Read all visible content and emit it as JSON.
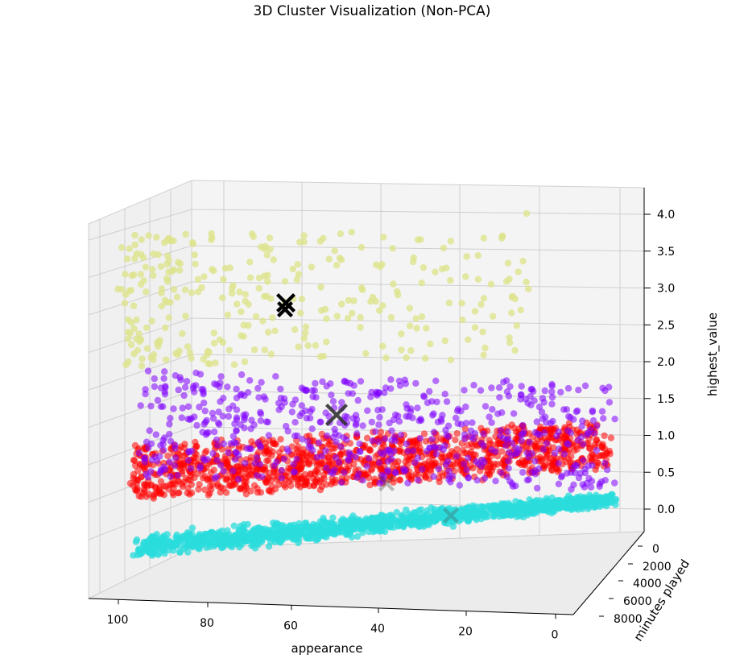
{
  "chart_data": {
    "type": "scatter",
    "title": "3D Cluster Visualization (Non-PCA)",
    "xlabel": "appearance",
    "ylabel": "minutes played",
    "zlabel": "highest_value",
    "x_ticks": [
      "100",
      "80",
      "60",
      "40",
      "20",
      "0"
    ],
    "y_ticks": [
      "0",
      "2000",
      "4000",
      "6000",
      "8000"
    ],
    "z_ticks": [
      "0.0",
      "0.5",
      "1.0",
      "1.5",
      "2.0",
      "2.5",
      "3.0",
      "3.5",
      "4.0"
    ],
    "xlim": [
      0,
      105
    ],
    "ylim": [
      0,
      8500
    ],
    "zlim": [
      -0.3,
      4.25
    ],
    "grid": true,
    "legend": "none",
    "clusters": [
      {
        "color": "#dde38c",
        "approx_z_range": [
          2.0,
          4.0
        ],
        "centroid": {
          "x": 68,
          "y": 1800,
          "z": 2.75
        },
        "centroid_color": "#000000"
      },
      {
        "color": "#8000ff",
        "approx_z_range": [
          1.0,
          2.3
        ],
        "centroid": {
          "x": 52,
          "y": 1800,
          "z": 1.45
        },
        "centroid_color": "#333333"
      },
      {
        "color": "#ff0000",
        "approx_z_range": [
          0.0,
          1.2
        ],
        "centroid": {
          "x": 45,
          "y": 2500,
          "z": 0.55
        },
        "centroid_color": "#444444"
      },
      {
        "color": "#2bdcdc",
        "approx_z_range": [
          -0.1,
          0.2
        ],
        "centroid": {
          "x": 30,
          "y": 4500,
          "z": 0.05
        },
        "centroid_color": "#444444"
      }
    ]
  }
}
